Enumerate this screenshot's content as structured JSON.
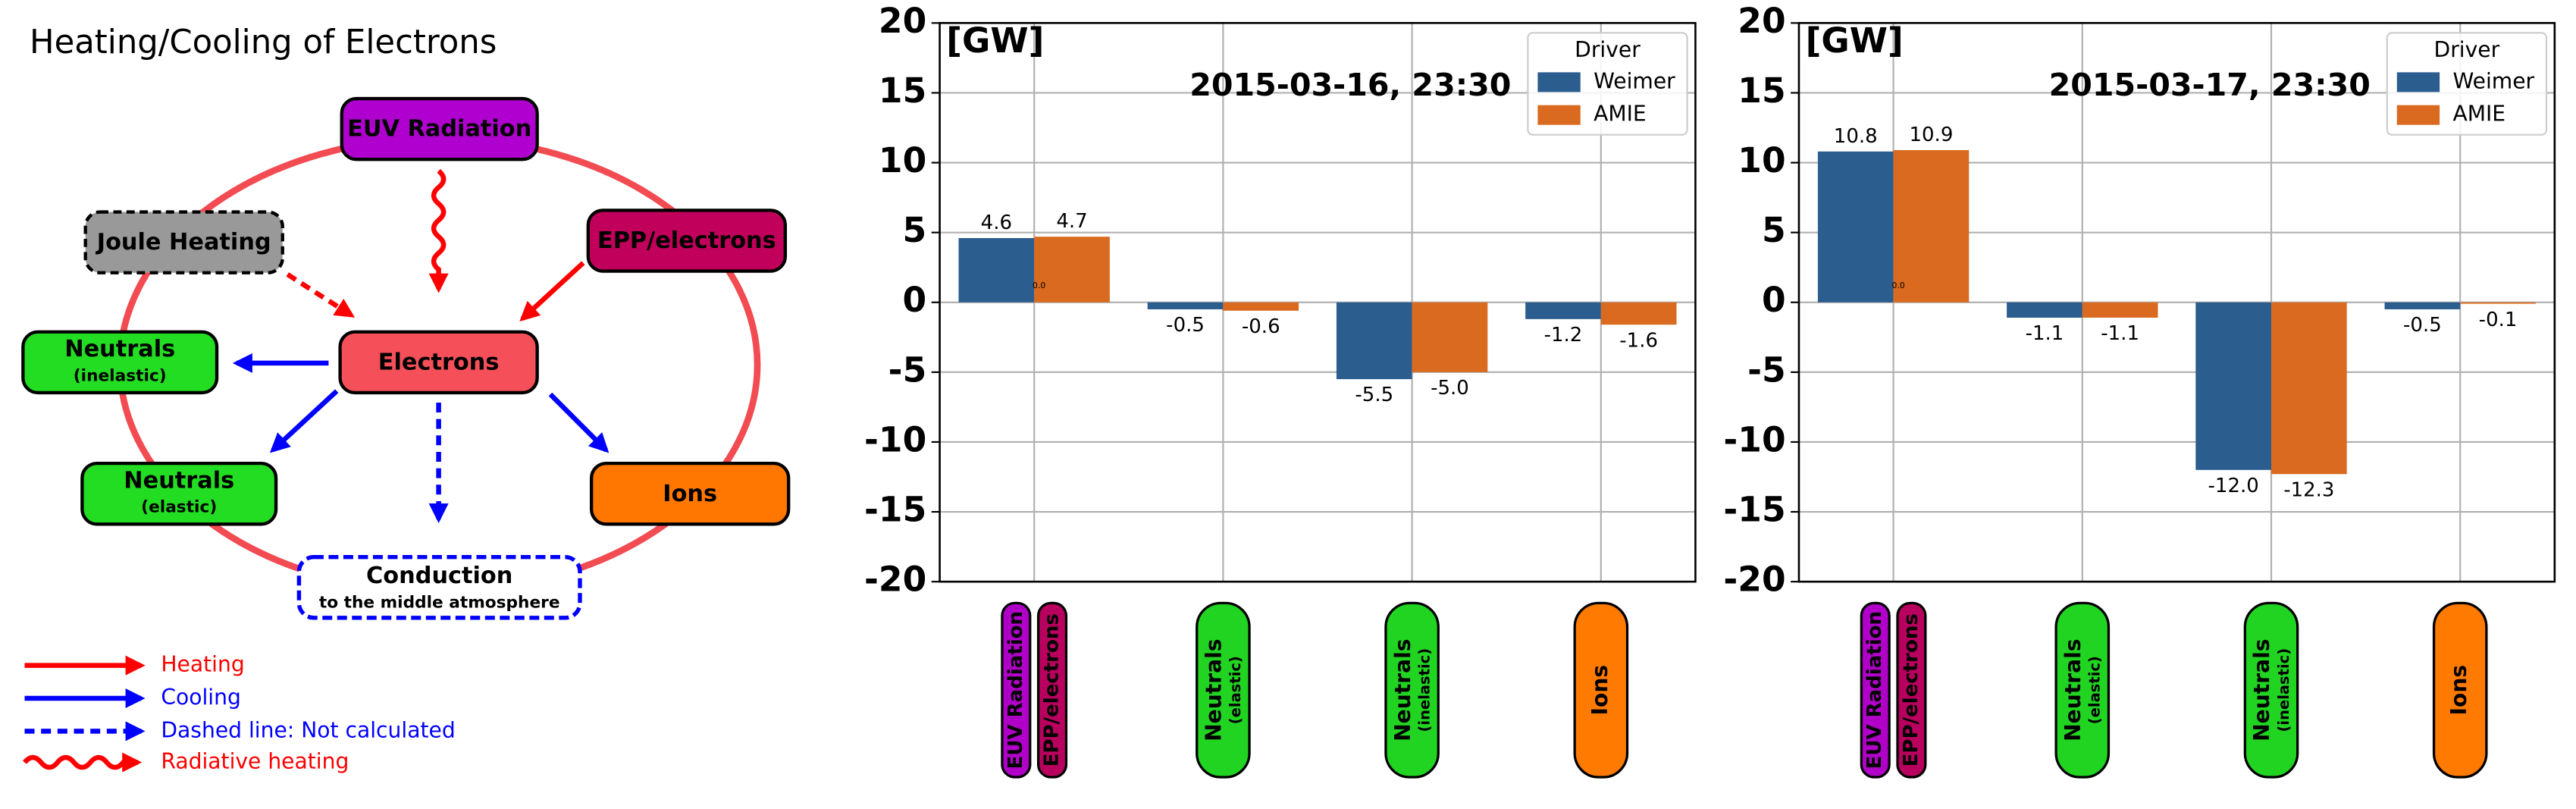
{
  "diagram": {
    "title": "Heating/Cooling of Electrons",
    "nodes": [
      {
        "label": "EUV Radiation"
      },
      {
        "label": "Joule Heating"
      },
      {
        "label": "EPP/electrons"
      },
      {
        "label": "Neutrals",
        "sublabel": "(inelastic)"
      },
      {
        "label": "Electrons"
      },
      {
        "label": "Neutrals",
        "sublabel": "(elastic)"
      },
      {
        "label": "Ions"
      },
      {
        "label": "Conduction",
        "sublabel": "to the middle atmosphere"
      }
    ],
    "legend": [
      "Heating",
      "Cooling",
      "Dashed line: Not calculated",
      "Radiative heating"
    ]
  },
  "chart_data": [
    {
      "type": "bar",
      "title": "2015-03-16, 23:30",
      "y_label": "[GW]",
      "annotation": "0.0",
      "categories": [
        [
          {
            "text": "EUV Radiation",
            "color": "#b000c8"
          },
          {
            "text": "EPP/electrons",
            "color": "#b8005e"
          }
        ],
        [
          {
            "text": "Neutrals",
            "sub": "(elastic)",
            "color": "#22d422"
          }
        ],
        [
          {
            "text": "Neutrals",
            "sub": "(inelastic)",
            "color": "#22d422"
          }
        ],
        [
          {
            "text": "Ions",
            "color": "#ff7a00"
          }
        ]
      ],
      "legend_title": "Driver",
      "legend": "upper right",
      "grid": true,
      "series": [
        {
          "name": "Weimer",
          "color": "#2b5d8e",
          "values": [
            4.6,
            -0.5,
            -5.5,
            -1.2
          ],
          "value_labels": [
            "4.6",
            "-0.5",
            "-5.5",
            "-1.2"
          ]
        },
        {
          "name": "AMIE",
          "color": "#d96a1f",
          "values": [
            4.7,
            -0.6,
            -5.0,
            -1.6
          ],
          "value_labels": [
            "4.7",
            "-0.6",
            "-5.0",
            "-1.6"
          ]
        }
      ],
      "ylim": [
        -20,
        20
      ],
      "yticks": [
        -20,
        -15,
        -10,
        -5,
        0,
        5,
        10,
        15,
        20
      ]
    },
    {
      "type": "bar",
      "title": "2015-03-17, 23:30",
      "y_label": "[GW]",
      "annotation": "0.0",
      "categories": [
        [
          {
            "text": "EUV Radiation",
            "color": "#b000c8"
          },
          {
            "text": "EPP/electrons",
            "color": "#b8005e"
          }
        ],
        [
          {
            "text": "Neutrals",
            "sub": "(elastic)",
            "color": "#22d422"
          }
        ],
        [
          {
            "text": "Neutrals",
            "sub": "(inelastic)",
            "color": "#22d422"
          }
        ],
        [
          {
            "text": "Ions",
            "color": "#ff7a00"
          }
        ]
      ],
      "legend_title": "Driver",
      "legend": "upper right",
      "grid": true,
      "series": [
        {
          "name": "Weimer",
          "color": "#2b5d8e",
          "values": [
            10.8,
            -1.1,
            -12.0,
            -0.5
          ],
          "value_labels": [
            "10.8",
            "-1.1",
            "-12.0",
            "-0.5"
          ]
        },
        {
          "name": "AMIE",
          "color": "#d96a1f",
          "values": [
            10.9,
            -1.1,
            -12.3,
            -0.1
          ],
          "value_labels": [
            "10.9",
            "-1.1",
            "-12.3",
            "-0.1"
          ]
        }
      ],
      "ylim": [
        -20,
        20
      ],
      "yticks": [
        -20,
        -15,
        -10,
        -5,
        0,
        5,
        10,
        15,
        20
      ]
    }
  ]
}
